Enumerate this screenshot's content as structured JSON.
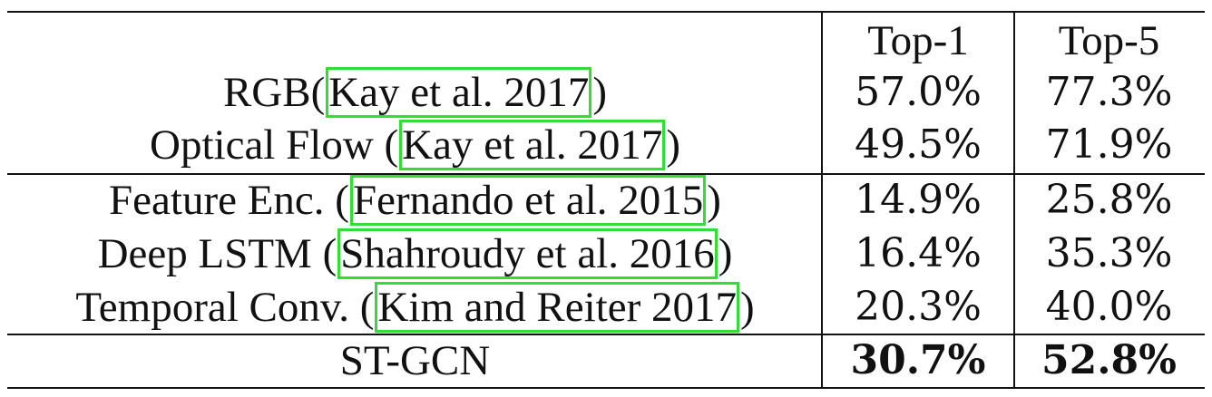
{
  "table": {
    "headers": [
      "",
      "Top-1",
      "Top-5"
    ],
    "rows": [
      {
        "method": "RGB(",
        "cite": "Kay et al. 2017",
        "close": ")",
        "top1": "57.0%",
        "top5": "77.3%"
      },
      {
        "method": "Optical Flow (",
        "cite": "Kay et al. 2017",
        "close": ")",
        "top1": "49.5%",
        "top5": "71.9%"
      },
      {
        "method": "Feature Enc. (",
        "cite": "Fernando et al. 2015",
        "close": ")",
        "top1": "14.9%",
        "top5": "25.8%"
      },
      {
        "method": "Deep LSTM (",
        "cite": "Shahroudy et al. 2016",
        "close": ")",
        "top1": "16.4%",
        "top5": "35.3%"
      },
      {
        "method": "Temporal Conv. (",
        "cite": "Kim and Reiter 2017",
        "close": ")",
        "top1": "20.3%",
        "top5": "40.0%"
      },
      {
        "method": "ST-GCN",
        "cite": "",
        "close": "",
        "top1": "30.7%",
        "top5": "52.8%"
      }
    ]
  },
  "colors": {
    "highlight_box": "#33dd33",
    "text": "#111111"
  }
}
